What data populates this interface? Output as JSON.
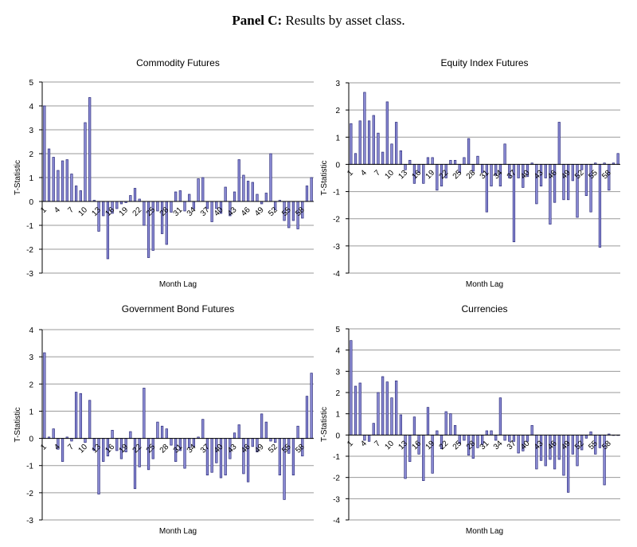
{
  "heading": {
    "bold": "Panel C:",
    "rest": "Results by asset class."
  },
  "style": {
    "bar_fill": "#8f8fd8",
    "bar_stroke": "#2a2a7a",
    "grid": "#9a9a9a",
    "axis": "#000000"
  },
  "chart_data": [
    {
      "type": "bar",
      "title": "Commodity Futures",
      "xlabel": "Month Lag",
      "ylabel": "T-Statistic",
      "ylim": [
        -3,
        5
      ],
      "yticks": [
        5,
        4,
        3,
        2,
        1,
        0,
        -1,
        -2,
        -3
      ],
      "grid": true,
      "categories": [
        1,
        2,
        3,
        4,
        5,
        6,
        7,
        8,
        9,
        10,
        11,
        12,
        13,
        14,
        15,
        16,
        17,
        18,
        19,
        20,
        21,
        22,
        23,
        24,
        25,
        26,
        27,
        28,
        29,
        30,
        31,
        32,
        33,
        34,
        35,
        36,
        37,
        38,
        39,
        40,
        41,
        42,
        43,
        44,
        45,
        46,
        47,
        48,
        49,
        50,
        51,
        52,
        53,
        54,
        55,
        56,
        57,
        58,
        59,
        60
      ],
      "tick_labels": [
        "1",
        "4",
        "7",
        "10",
        "13",
        "16",
        "19",
        "22",
        "25",
        "28",
        "31",
        "34",
        "37",
        "40",
        "43",
        "46",
        "49",
        "52",
        "55",
        "58"
      ],
      "values": [
        4.0,
        2.2,
        1.85,
        1.3,
        1.7,
        1.75,
        1.15,
        0.65,
        0.45,
        3.3,
        4.35,
        0.05,
        -1.25,
        -0.6,
        -2.4,
        -0.5,
        -0.3,
        -0.1,
        -0.05,
        0.25,
        0.55,
        0.1,
        -1.0,
        -2.35,
        -2.05,
        -0.4,
        -1.35,
        -1.8,
        -0.45,
        0.4,
        0.45,
        -0.4,
        0.3,
        -0.3,
        0.95,
        1.0,
        -0.3,
        -0.85,
        -0.3,
        -0.5,
        0.6,
        -0.6,
        0.4,
        1.75,
        1.1,
        0.85,
        0.8,
        0.3,
        -0.1,
        0.35,
        2.0,
        -0.35,
        0.05,
        -0.8,
        -1.1,
        -0.8,
        -1.15,
        -0.7,
        0.65,
        1.0
      ]
    },
    {
      "type": "bar",
      "title": "Equity Index Futures",
      "xlabel": "Month Lag",
      "ylabel": "T-Statistic",
      "ylim": [
        -4,
        3
      ],
      "yticks": [
        3,
        2,
        1,
        0,
        -1,
        -2,
        -3,
        -4
      ],
      "grid": true,
      "categories": [
        1,
        2,
        3,
        4,
        5,
        6,
        7,
        8,
        9,
        10,
        11,
        12,
        13,
        14,
        15,
        16,
        17,
        18,
        19,
        20,
        21,
        22,
        23,
        24,
        25,
        26,
        27,
        28,
        29,
        30,
        31,
        32,
        33,
        34,
        35,
        36,
        37,
        38,
        39,
        40,
        41,
        42,
        43,
        44,
        45,
        46,
        47,
        48,
        49,
        50,
        51,
        52,
        53,
        54,
        55,
        56,
        57,
        58,
        59,
        60
      ],
      "tick_labels": [
        "1",
        "4",
        "7",
        "10",
        "13",
        "16",
        "19",
        "22",
        "25",
        "28",
        "31",
        "34",
        "37",
        "40",
        "43",
        "46",
        "49",
        "52",
        "55",
        "58"
      ],
      "values": [
        1.5,
        0.4,
        1.6,
        2.65,
        1.6,
        1.8,
        1.15,
        0.45,
        2.3,
        0.75,
        1.55,
        0.5,
        -0.2,
        0.15,
        -0.7,
        -0.3,
        -0.7,
        0.25,
        0.25,
        -0.95,
        -0.8,
        -0.5,
        0.15,
        0.15,
        -0.3,
        0.25,
        0.95,
        -0.25,
        0.3,
        -0.3,
        -1.75,
        -0.8,
        -0.4,
        -0.8,
        0.75,
        -0.5,
        -2.85,
        -0.5,
        -0.85,
        -0.45,
        0.05,
        -1.45,
        -0.8,
        -0.5,
        -2.2,
        -1.4,
        1.55,
        -1.3,
        -1.3,
        -0.6,
        -1.95,
        -0.2,
        -1.15,
        -1.75,
        0.05,
        -3.05,
        0.05,
        -0.95,
        0.05,
        0.4
      ]
    },
    {
      "type": "bar",
      "title": "Government Bond Futures",
      "xlabel": "Month Lag",
      "ylabel": "T-Statistic",
      "ylim": [
        -3,
        4
      ],
      "yticks": [
        4,
        3,
        2,
        1,
        0,
        -1,
        -2,
        -3
      ],
      "grid": true,
      "categories": [
        1,
        2,
        3,
        4,
        5,
        6,
        7,
        8,
        9,
        10,
        11,
        12,
        13,
        14,
        15,
        16,
        17,
        18,
        19,
        20,
        21,
        22,
        23,
        24,
        25,
        26,
        27,
        28,
        29,
        30,
        31,
        32,
        33,
        34,
        35,
        36,
        37,
        38,
        39,
        40,
        41,
        42,
        43,
        44,
        45,
        46,
        47,
        48,
        49,
        50,
        51,
        52,
        53,
        54,
        55,
        56,
        57,
        58,
        59,
        60
      ],
      "tick_labels": [
        "1",
        "4",
        "7",
        "10",
        "13",
        "16",
        "19",
        "22",
        "25",
        "28",
        "31",
        "34",
        "37",
        "40",
        "43",
        "46",
        "49",
        "52",
        "55",
        "58"
      ],
      "values": [
        3.15,
        0.05,
        0.35,
        -0.4,
        -0.85,
        0.05,
        -0.1,
        1.7,
        1.65,
        -0.15,
        1.4,
        -0.45,
        -2.05,
        -0.85,
        -0.65,
        0.3,
        -0.45,
        -0.75,
        -0.5,
        0.25,
        -1.85,
        -1.05,
        1.85,
        -1.15,
        -0.75,
        0.6,
        0.45,
        0.35,
        -0.25,
        -0.85,
        -0.45,
        -1.1,
        -0.35,
        -0.3,
        0.05,
        0.7,
        -1.35,
        -1.25,
        -0.9,
        -1.45,
        -1.35,
        -0.75,
        0.2,
        0.5,
        -1.3,
        -1.6,
        -0.3,
        -0.5,
        0.9,
        0.6,
        -0.1,
        -0.15,
        -1.35,
        -2.25,
        -0.55,
        -1.35,
        0.45,
        -0.65,
        1.55,
        2.4
      ]
    },
    {
      "type": "bar",
      "title": "Currencies",
      "xlabel": "Month Lag",
      "ylabel": "T-Statistic",
      "ylim": [
        -4,
        5
      ],
      "yticks": [
        5,
        4,
        3,
        2,
        1,
        0,
        -1,
        -2,
        -3,
        -4
      ],
      "grid": true,
      "categories": [
        1,
        2,
        3,
        4,
        5,
        6,
        7,
        8,
        9,
        10,
        11,
        12,
        13,
        14,
        15,
        16,
        17,
        18,
        19,
        20,
        21,
        22,
        23,
        24,
        25,
        26,
        27,
        28,
        29,
        30,
        31,
        32,
        33,
        34,
        35,
        36,
        37,
        38,
        39,
        40,
        41,
        42,
        43,
        44,
        45,
        46,
        47,
        48,
        49,
        50,
        51,
        52,
        53,
        54,
        55,
        56,
        57,
        58,
        59,
        60
      ],
      "tick_labels": [
        "1",
        "4",
        "7",
        "10",
        "13",
        "16",
        "19",
        "22",
        "25",
        "28",
        "31",
        "34",
        "37",
        "40",
        "43",
        "46",
        "49",
        "52",
        "55",
        "58"
      ],
      "values": [
        4.45,
        2.3,
        2.45,
        -0.25,
        -0.3,
        0.55,
        2.0,
        2.75,
        2.5,
        1.75,
        2.55,
        0.95,
        -2.05,
        -1.25,
        0.85,
        -0.9,
        -2.15,
        1.3,
        -1.8,
        0.2,
        -0.65,
        1.1,
        1.0,
        0.45,
        -0.4,
        -0.25,
        -0.95,
        -1.1,
        -0.6,
        -0.45,
        0.2,
        0.2,
        -0.25,
        1.75,
        -0.25,
        -0.3,
        -0.3,
        -0.85,
        -0.75,
        -0.3,
        0.45,
        -1.6,
        -1.2,
        -1.45,
        -1.15,
        -1.6,
        -1.15,
        -1.9,
        -2.7,
        -0.9,
        -1.45,
        -0.7,
        -0.15,
        0.15,
        -0.9,
        -0.6,
        -2.35,
        0.05,
        0.0,
        0.0
      ]
    }
  ]
}
